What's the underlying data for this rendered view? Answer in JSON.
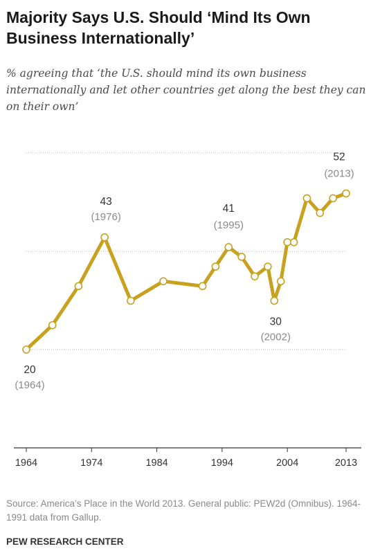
{
  "chart_data": {
    "type": "line",
    "title": "Majority Says U.S. Should ‘Mind Its Own Business Internationally’",
    "subtitle": "% agreeing that ‘the U.S. should mind its own business internationally and let other countries get along the best they can on their own’",
    "x": [
      1964,
      1968,
      1972,
      1976,
      1980,
      1985,
      1991,
      1993,
      1995,
      1997,
      1999,
      2001,
      2002,
      2003,
      2004,
      2005,
      2007,
      2009,
      2011,
      2013
    ],
    "series": [
      {
        "values": [
          20,
          25,
          33,
          43,
          30,
          34,
          33,
          37,
          41,
          39,
          35,
          37,
          30,
          34,
          42,
          42,
          51,
          48,
          51,
          52
        ]
      }
    ],
    "annotations": [
      {
        "x": 1964,
        "value": "20",
        "year": "(1964)"
      },
      {
        "x": 1976,
        "value": "43",
        "year": "(1976)"
      },
      {
        "x": 1995,
        "value": "41",
        "year": "(1995)"
      },
      {
        "x": 2002,
        "value": "30",
        "year": "(2002)"
      },
      {
        "x": 2013,
        "value": "52",
        "year": "(2013)"
      }
    ],
    "xticks": [
      1964,
      1974,
      1984,
      1994,
      2004,
      2013
    ],
    "xlim": [
      1964,
      2013
    ],
    "ylim": [
      20,
      52
    ],
    "gridlines": [
      20,
      40,
      60
    ],
    "grid": true,
    "line_color": "#c8a21e",
    "marker_fill": "#ffffff",
    "label_color": "#333333",
    "year_color": "#8a8a8a"
  },
  "source": "Source: America’s Place in the World 2013. General public: PEW2d (Omnibus). 1964-1991 data from Gallup.",
  "brand": "PEW RESEARCH CENTER"
}
